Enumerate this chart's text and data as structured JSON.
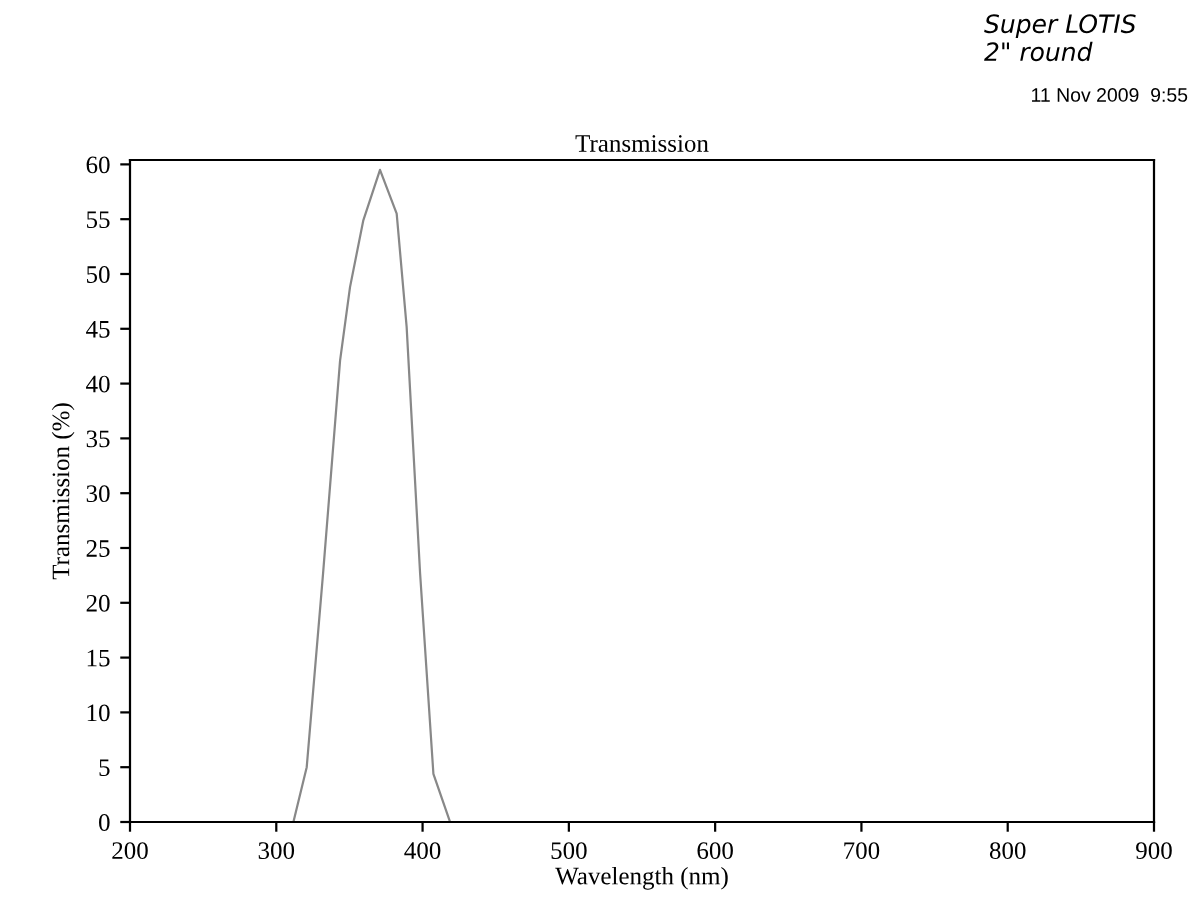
{
  "chart_data": {
    "type": "line",
    "title": "Transmission",
    "xlabel": "Wavelength (nm)",
    "ylabel": "Transmission (%)",
    "annotations": [
      "Super LOTIS\n2\" round",
      "11 Nov 2009  9:55"
    ],
    "x": [
      300,
      311.7,
      320.8,
      332,
      343.6,
      350.4,
      359.5,
      370.9,
      382.3,
      389.1,
      398.3,
      407.4,
      418.8
    ],
    "series": [
      {
        "color": "#888888",
        "values": [
          0,
          0,
          5,
          22.7,
          42.1,
          48.8,
          54.9,
          59.5,
          55.5,
          45.2,
          22.7,
          4.4,
          0
        ]
      }
    ],
    "xlim": [
      200,
      900
    ],
    "xticks": [
      200,
      300,
      400,
      500,
      600,
      700,
      800,
      900
    ],
    "ylim": [
      0,
      60.4
    ],
    "yticks": [
      0,
      5,
      10,
      15,
      20,
      25,
      30,
      35,
      40,
      45,
      50,
      55,
      60
    ],
    "grid": false,
    "legend": false,
    "marker": "none",
    "line_style": "solid"
  }
}
